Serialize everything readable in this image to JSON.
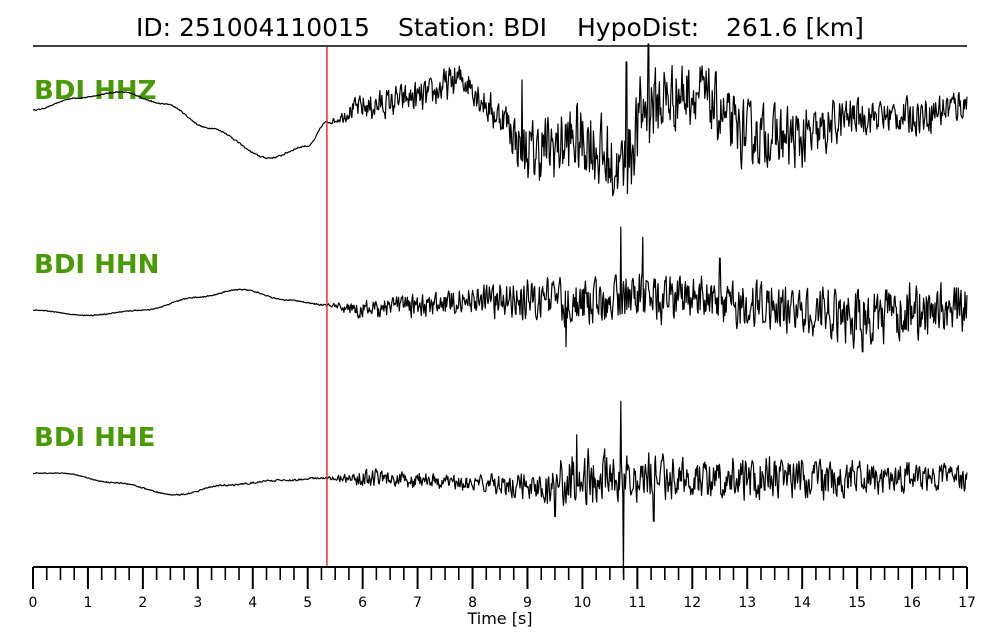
{
  "header": {
    "id_label": "ID: 251004110015",
    "station_label": "Station: BDI",
    "hypodist_label": "HypoDist:",
    "hypodist_value": "261.6 [km]"
  },
  "colors": {
    "trace": "#000000",
    "label": "#4a9a06",
    "pick": "#e8231e",
    "axis": "#000000"
  },
  "chart_data": {
    "type": "line",
    "xlabel": "Time [s]",
    "xlim": [
      0,
      17
    ],
    "x_ticks": [
      "0",
      "1",
      "2",
      "3",
      "4",
      "5",
      "6",
      "7",
      "8",
      "9",
      "10",
      "11",
      "12",
      "13",
      "14",
      "15",
      "16",
      "17"
    ],
    "minor_tick_step": 0.25,
    "pick_time": 5.35,
    "series": [
      {
        "name": "BDI HHZ",
        "points": [
          [
            0,
            0.2
          ],
          [
            0.8,
            0.4
          ],
          [
            1.6,
            0.5
          ],
          [
            2.4,
            0.3
          ],
          [
            3.2,
            -0.1
          ],
          [
            4.3,
            -0.6
          ],
          [
            5.0,
            -0.4
          ],
          [
            5.35,
            0.0
          ],
          [
            6.0,
            0.25
          ],
          [
            7.0,
            0.4
          ],
          [
            7.8,
            0.7
          ],
          [
            8.5,
            0.1
          ],
          [
            9.0,
            -0.5
          ],
          [
            10.0,
            -0.3
          ],
          [
            10.7,
            -0.8
          ],
          [
            11.2,
            0.3
          ],
          [
            12.0,
            0.5
          ],
          [
            13.0,
            -0.2
          ],
          [
            14.0,
            -0.3
          ],
          [
            15.0,
            0.1
          ],
          [
            16.0,
            0.1
          ],
          [
            17,
            0.3
          ]
        ],
        "noise": [
          [
            0,
            0.01
          ],
          [
            5.35,
            0.02
          ],
          [
            6.0,
            0.3
          ],
          [
            8.5,
            0.4
          ],
          [
            9.0,
            0.7
          ],
          [
            10.5,
            0.9
          ],
          [
            11.5,
            0.9
          ],
          [
            12.0,
            0.7
          ],
          [
            14.0,
            0.7
          ],
          [
            15.0,
            0.4
          ],
          [
            17,
            0.4
          ]
        ],
        "spikes": [
          [
            10.65,
            -1.0
          ],
          [
            10.8,
            1.0
          ],
          [
            11.2,
            1.3
          ],
          [
            8.9,
            0.7
          ]
        ]
      },
      {
        "name": "BDI HHN",
        "points": [
          [
            0,
            -0.1
          ],
          [
            1.0,
            -0.2
          ],
          [
            2.0,
            -0.1
          ],
          [
            3.0,
            0.15
          ],
          [
            3.8,
            0.3
          ],
          [
            4.6,
            0.1
          ],
          [
            5.35,
            0.0
          ],
          [
            6.0,
            -0.1
          ],
          [
            7.0,
            0.0
          ],
          [
            8.0,
            0.1
          ],
          [
            9.0,
            0.1
          ],
          [
            10.0,
            0.05
          ],
          [
            11.0,
            0.1
          ],
          [
            12.0,
            0.1
          ],
          [
            13.0,
            0.0
          ],
          [
            14.0,
            -0.1
          ],
          [
            15.0,
            -0.2
          ],
          [
            16.0,
            -0.2
          ],
          [
            17,
            0.0
          ]
        ],
        "noise": [
          [
            0,
            0.01
          ],
          [
            5.35,
            0.02
          ],
          [
            6.0,
            0.25
          ],
          [
            8.0,
            0.35
          ],
          [
            9.0,
            0.5
          ],
          [
            10.0,
            0.7
          ],
          [
            11.0,
            0.6
          ],
          [
            12.0,
            0.55
          ],
          [
            14.0,
            0.6
          ],
          [
            15.0,
            0.8
          ],
          [
            17,
            0.6
          ]
        ],
        "spikes": [
          [
            10.7,
            1.5
          ],
          [
            11.1,
            1.3
          ],
          [
            12.5,
            0.9
          ],
          [
            15.1,
            -0.9
          ],
          [
            9.7,
            -0.8
          ]
        ]
      },
      {
        "name": "BDI HHE",
        "points": [
          [
            0,
            0.1
          ],
          [
            0.5,
            0.1
          ],
          [
            1.5,
            -0.1
          ],
          [
            2.6,
            -0.35
          ],
          [
            3.5,
            -0.15
          ],
          [
            4.5,
            -0.05
          ],
          [
            5.35,
            0.0
          ],
          [
            6.0,
            0.0
          ],
          [
            7.0,
            -0.05
          ],
          [
            8.0,
            -0.1
          ],
          [
            9.0,
            -0.15
          ],
          [
            10.0,
            0.0
          ],
          [
            11.0,
            0.05
          ],
          [
            12.0,
            0.0
          ],
          [
            13.0,
            0.0
          ],
          [
            14.0,
            0.0
          ],
          [
            15.0,
            0.0
          ],
          [
            16.0,
            0.0
          ],
          [
            17,
            0.0
          ]
        ],
        "noise": [
          [
            0,
            0.01
          ],
          [
            5.35,
            0.03
          ],
          [
            6.0,
            0.25
          ],
          [
            8.0,
            0.2
          ],
          [
            9.0,
            0.4
          ],
          [
            10.0,
            0.75
          ],
          [
            11.0,
            0.65
          ],
          [
            12.0,
            0.55
          ],
          [
            13.0,
            0.6
          ],
          [
            14.0,
            0.6
          ],
          [
            15.0,
            0.45
          ],
          [
            17,
            0.35
          ]
        ],
        "spikes": [
          [
            10.7,
            1.6
          ],
          [
            10.75,
            -2.0
          ],
          [
            9.9,
            0.9
          ],
          [
            9.5,
            -0.8
          ],
          [
            11.3,
            -0.9
          ]
        ]
      }
    ]
  }
}
